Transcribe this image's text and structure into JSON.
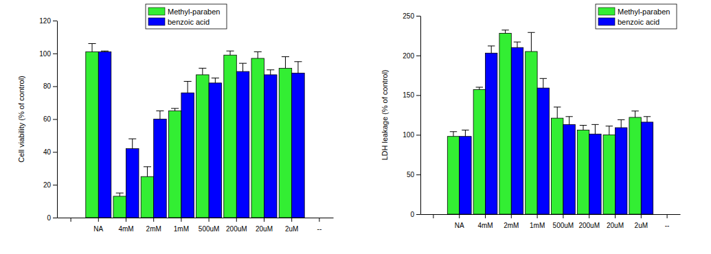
{
  "chart_data": [
    {
      "type": "bar",
      "y_label": "Cell viability (% of control)",
      "categories": [
        null,
        "NA",
        "4mM",
        "2mM",
        "1mM",
        "500uM",
        "200uM",
        "20uM",
        "2uM",
        "--"
      ],
      "series": [
        {
          "name": "Methyl-paraben",
          "color": "#33ee33",
          "values": [
            null,
            101,
            13,
            25,
            65,
            87,
            99,
            97,
            91,
            null
          ],
          "errors": [
            null,
            5,
            2,
            6,
            1.5,
            4,
            2.5,
            4,
            7,
            null
          ]
        },
        {
          "name": "benzoic acid",
          "color": "#0000ff",
          "values": [
            null,
            101,
            42,
            60,
            76,
            82,
            89,
            87,
            88,
            null
          ],
          "errors": [
            null,
            0.5,
            6,
            5,
            7,
            3,
            5,
            3,
            7,
            null
          ]
        }
      ],
      "ylim": [
        0,
        120
      ],
      "yticks": [
        0,
        20,
        40,
        60,
        80,
        100,
        120
      ],
      "legend": "upper right"
    },
    {
      "type": "bar",
      "y_label": "LDH leakage (% of control)",
      "categories": [
        null,
        "NA",
        "4mM",
        "2mM",
        "1mM",
        "500uM",
        "200uM",
        "20uM",
        "2uM",
        "--"
      ],
      "series": [
        {
          "name": "Methyl-paraben",
          "color": "#33ee33",
          "values": [
            null,
            98,
            157,
            228,
            205,
            121,
            106,
            100,
            122,
            null
          ],
          "errors": [
            null,
            6,
            3,
            4,
            24,
            14,
            6,
            11,
            8,
            null
          ]
        },
        {
          "name": "benzoic acid",
          "color": "#0000ff",
          "values": [
            null,
            98,
            203,
            210,
            159,
            113,
            101,
            109,
            116,
            null
          ],
          "errors": [
            null,
            8,
            9,
            7,
            12,
            10,
            12,
            10,
            7,
            null
          ]
        }
      ],
      "ylim": [
        0,
        250
      ],
      "yticks": [
        0,
        50,
        100,
        150,
        200,
        250
      ],
      "legend": "upper right"
    }
  ]
}
